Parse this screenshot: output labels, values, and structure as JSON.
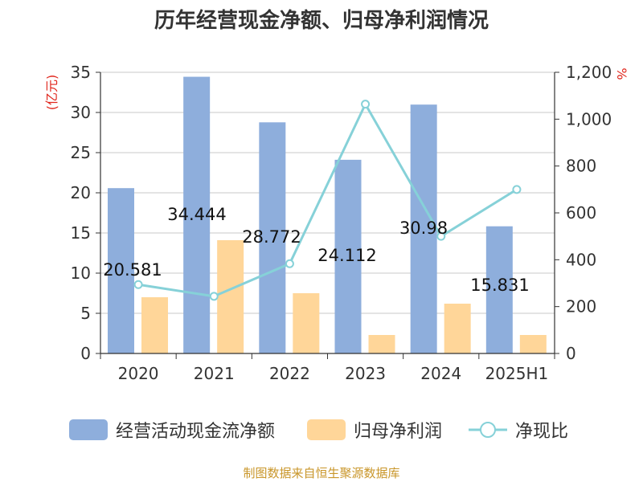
{
  "title": "历年经营现金净额、归母净利润情况",
  "source": "制图数据来自恒生聚源数据库",
  "colors": {
    "bar_cash": "#8eaedc",
    "bar_profit": "#ffd699",
    "line_ratio": "#86d1d8",
    "grid": "#c8c8c8",
    "axis": "#333333"
  },
  "chart_data": {
    "type": "bar",
    "title": "历年经营现金净额、归母净利润情况",
    "categories": [
      "2020",
      "2021",
      "2022",
      "2023",
      "2024",
      "2025H1"
    ],
    "left_axis": {
      "unit": "(亿元)",
      "min": 0,
      "max": 35,
      "ticks": [
        "0",
        "5",
        "10",
        "15",
        "20",
        "25",
        "30",
        "35"
      ]
    },
    "right_axis": {
      "unit": "%",
      "min": 0,
      "max": 1200,
      "ticks": [
        "0",
        "200",
        "400",
        "600",
        "800",
        "1,000",
        "1,200"
      ]
    },
    "grid": true,
    "legend_position": "bottom",
    "series": [
      {
        "name": "经营活动现金流净额",
        "type": "bar",
        "axis": "left",
        "values": [
          20.581,
          34.444,
          28.772,
          24.112,
          30.98,
          15.831
        ],
        "labels": [
          "20.581",
          "34.444",
          "28.772",
          "24.112",
          "30.98",
          "15.831"
        ]
      },
      {
        "name": "归母净利润",
        "type": "bar",
        "axis": "left",
        "values": [
          7.0,
          14.1,
          7.5,
          2.3,
          6.2,
          2.3
        ]
      },
      {
        "name": "净现比",
        "type": "line",
        "axis": "right",
        "values": [
          294,
          244,
          383,
          1064,
          500,
          700
        ]
      }
    ]
  }
}
